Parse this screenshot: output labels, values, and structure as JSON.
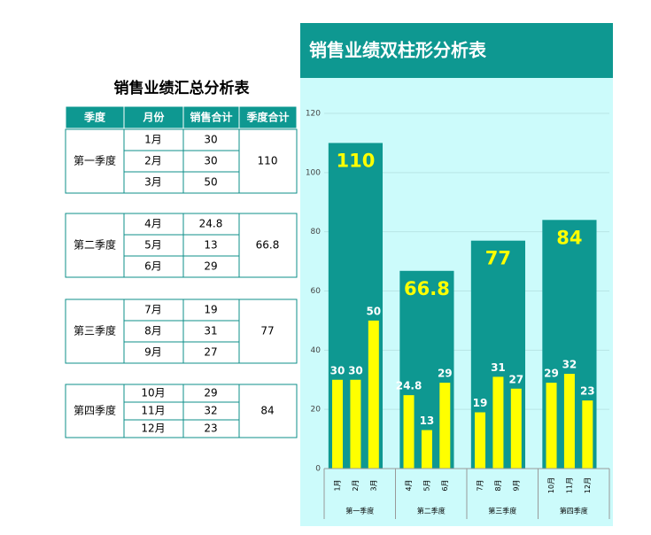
{
  "table": {
    "title": "销售业绩汇总分析表",
    "header": [
      "季度",
      "月份",
      "销售合计",
      "季度合计"
    ],
    "blocks": [
      {
        "quarter": "第一季度",
        "rows": [
          [
            "1月",
            30
          ],
          [
            "2月",
            30
          ],
          [
            "3月",
            50
          ]
        ],
        "total": 110
      },
      {
        "quarter": "第二季度",
        "rows": [
          [
            "4月",
            24.8
          ],
          [
            "5月",
            13
          ],
          [
            "6月",
            29
          ]
        ],
        "total": 66.8
      },
      {
        "quarter": "第三季度",
        "rows": [
          [
            "7月",
            19
          ],
          [
            "8月",
            31
          ],
          [
            "9月",
            27
          ]
        ],
        "total": 77
      },
      {
        "quarter": "第四季度",
        "rows": [
          [
            "10月",
            29
          ],
          [
            "11月",
            32
          ],
          [
            "12月",
            23
          ]
        ],
        "total": 84
      }
    ]
  },
  "chart_data": {
    "type": "bar",
    "title": "销售业绩双柱形分析表",
    "groups": [
      "第一季度",
      "第二季度",
      "第三季度",
      "第四季度"
    ],
    "group_values": [
      110,
      66.8,
      77,
      84
    ],
    "group_color": "#0e9891",
    "categories": [
      "1月",
      "2月",
      "3月",
      "4月",
      "5月",
      "6月",
      "7月",
      "8月",
      "9月",
      "10月",
      "11月",
      "12月"
    ],
    "values": [
      30,
      30,
      50,
      24.8,
      13,
      29,
      19,
      31,
      27,
      29,
      32,
      23
    ],
    "color": "#ffff00",
    "ylim": [
      0,
      120
    ],
    "yticks": [
      0,
      20,
      40,
      60,
      80,
      100,
      120
    ],
    "grid": true
  }
}
